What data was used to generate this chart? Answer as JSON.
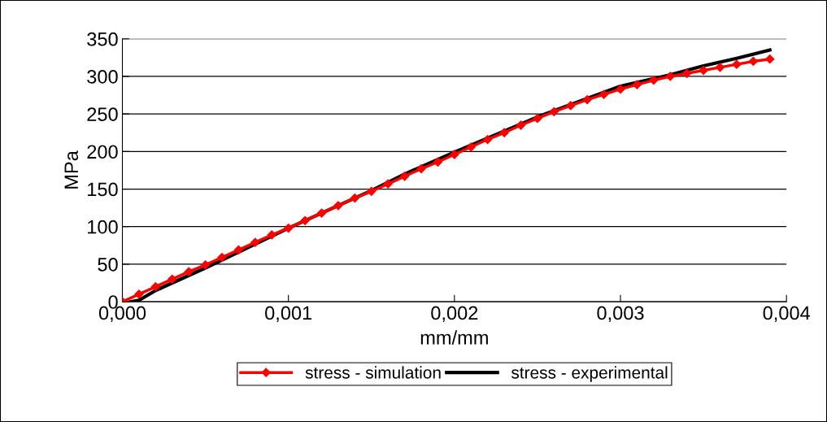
{
  "chart_data": {
    "type": "line",
    "xlabel": "mm/mm",
    "ylabel": "MPa",
    "xlim": [
      0,
      0.004
    ],
    "xticks": [
      {
        "value": 0,
        "label": "0,000"
      },
      {
        "value": 0.001,
        "label": "0,001"
      },
      {
        "value": 0.002,
        "label": "0,002"
      },
      {
        "value": 0.003,
        "label": "0,003"
      },
      {
        "value": 0.004,
        "label": "0,004"
      }
    ],
    "ylim": [
      0,
      350
    ],
    "yticks": [
      0,
      50,
      100,
      150,
      200,
      250,
      300,
      350
    ],
    "grid": "y",
    "legend": "bottom",
    "series": [
      {
        "name": "stress - simulation",
        "color": "#ff0000",
        "marker": "diamond",
        "x": [
          0,
          0.0001,
          0.0002,
          0.0003,
          0.0004,
          0.0005,
          0.0006,
          0.0007,
          0.0008,
          0.0009,
          0.001,
          0.0011,
          0.0012,
          0.0013,
          0.0014,
          0.0015,
          0.0016,
          0.0017,
          0.0018,
          0.0019,
          0.002,
          0.0021,
          0.0022,
          0.0023,
          0.0024,
          0.0025,
          0.0026,
          0.0027,
          0.0028,
          0.0029,
          0.003,
          0.0031,
          0.0032,
          0.0033,
          0.0034,
          0.0035,
          0.0036,
          0.0037,
          0.0038,
          0.0039
        ],
        "values": [
          0,
          10,
          20,
          30,
          40,
          49,
          59,
          69,
          79,
          89,
          98,
          108,
          118,
          128,
          138,
          147,
          157,
          167,
          177,
          186,
          196,
          206,
          216,
          225,
          235,
          244,
          253,
          261,
          269,
          276,
          283,
          289,
          295,
          300,
          304,
          308,
          312,
          316,
          320,
          323
        ]
      },
      {
        "name": "stress - experimental",
        "color": "#000000",
        "marker": "none",
        "x": [
          5e-05,
          0.0001,
          0.0002,
          0.0005,
          0.001,
          0.0015,
          0.0017,
          0.002,
          0.0025,
          0.003,
          0.0033,
          0.0035,
          0.0037,
          0.0039
        ],
        "values": [
          0,
          2,
          15,
          45,
          98,
          148,
          170,
          199,
          246,
          287,
          302,
          314,
          324,
          335
        ]
      }
    ]
  }
}
